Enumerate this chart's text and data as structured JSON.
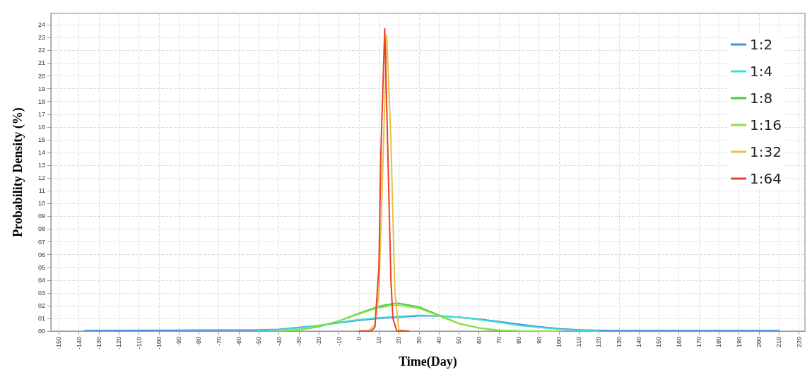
{
  "chart_data": {
    "type": "line",
    "xlabel": "Time(Day)",
    "ylabel": "Probability Density (%)",
    "xlim": [
      -154,
      223
    ],
    "xticks": [
      -150,
      -140,
      -130,
      -120,
      -110,
      -100,
      -90,
      -80,
      -70,
      -60,
      -50,
      -40,
      -30,
      -20,
      -10,
      0,
      10,
      20,
      30,
      40,
      50,
      60,
      70,
      80,
      90,
      100,
      110,
      120,
      130,
      140,
      150,
      160,
      170,
      180,
      190,
      200,
      210,
      220
    ],
    "ylim": [
      0,
      24.9
    ],
    "yticks": [
      {
        "value": 0,
        "label": "00"
      },
      {
        "value": 1,
        "label": "01"
      },
      {
        "value": 2,
        "label": "02"
      },
      {
        "value": 3,
        "label": "03"
      },
      {
        "value": 4,
        "label": "04"
      },
      {
        "value": 5,
        "label": "05"
      },
      {
        "value": 6,
        "label": "06"
      },
      {
        "value": 7,
        "label": "07"
      },
      {
        "value": 8,
        "label": "08"
      },
      {
        "value": 9,
        "label": "09"
      },
      10,
      11,
      12,
      13,
      14,
      15,
      16,
      17,
      18,
      19,
      20,
      21,
      22,
      23,
      24
    ],
    "grid": true,
    "legend": "top right",
    "marker": "none",
    "line_style": "solid",
    "series": [
      {
        "name": "1:2",
        "color": "#4a8ee0",
        "x": [
          -137,
          -50,
          -40,
          -30,
          -20,
          -10,
          0,
          10,
          20,
          30,
          40,
          50,
          60,
          70,
          80,
          90,
          100,
          110,
          125,
          210
        ],
        "values": [
          0.05,
          0.1,
          0.15,
          0.3,
          0.45,
          0.65,
          0.85,
          1.0,
          1.1,
          1.2,
          1.2,
          1.1,
          0.95,
          0.75,
          0.55,
          0.35,
          0.2,
          0.1,
          0.05,
          0.05
        ]
      },
      {
        "name": "1:4",
        "color": "#40e0d0",
        "x": [
          -50,
          -40,
          -30,
          -20,
          -10,
          0,
          10,
          20,
          30,
          40,
          50,
          60,
          70,
          80,
          90,
          100,
          110,
          120
        ],
        "values": [
          0.05,
          0.1,
          0.25,
          0.45,
          0.7,
          0.9,
          1.05,
          1.15,
          1.25,
          1.2,
          1.1,
          0.9,
          0.7,
          0.45,
          0.3,
          0.15,
          0.05,
          0.02
        ]
      },
      {
        "name": "1:8",
        "color": "#40d040",
        "x": [
          -40,
          -30,
          -20,
          -10,
          0,
          10,
          19,
          30,
          40,
          50,
          60,
          70,
          80,
          100
        ],
        "values": [
          0,
          0.1,
          0.35,
          0.8,
          1.4,
          1.95,
          2.2,
          1.9,
          1.25,
          0.6,
          0.25,
          0.05,
          0.02,
          0
        ]
      },
      {
        "name": "1:16",
        "color": "#90e040",
        "x": [
          -40,
          -30,
          -20,
          -10,
          0,
          10,
          19,
          30,
          40,
          50,
          60,
          70,
          80,
          100
        ],
        "values": [
          0,
          0.12,
          0.4,
          0.8,
          1.35,
          1.85,
          2.05,
          1.8,
          1.2,
          0.6,
          0.25,
          0.07,
          0.02,
          0
        ]
      },
      {
        "name": "1:32",
        "color": "#e8c040",
        "x": [
          0,
          5,
          8,
          10,
          12,
          13.9,
          16,
          18,
          20,
          25
        ],
        "values": [
          0,
          0.05,
          0.5,
          3,
          13,
          23.2,
          15,
          3,
          0.1,
          0
        ]
      },
      {
        "name": "1:64",
        "color": "#e84030",
        "x": [
          0,
          6,
          8,
          10,
          11,
          12.9,
          14,
          16,
          17,
          19,
          25
        ],
        "values": [
          0,
          0,
          0.3,
          5,
          14,
          23.7,
          17,
          4,
          1,
          0,
          0
        ]
      }
    ]
  }
}
